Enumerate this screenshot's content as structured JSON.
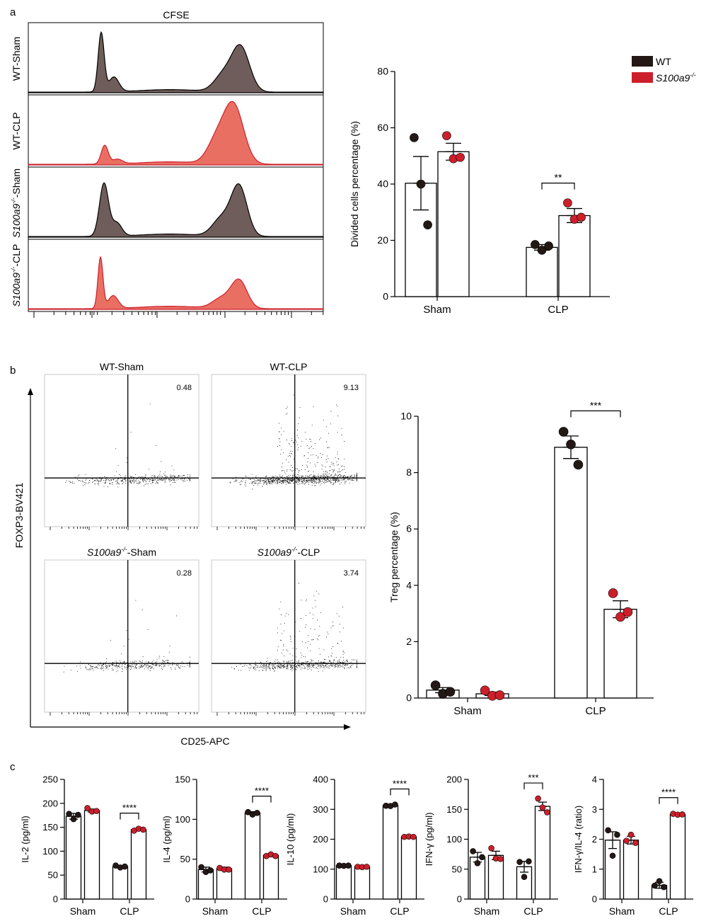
{
  "panel_labels": {
    "a": "a",
    "b": "b",
    "c": "c"
  },
  "colors": {
    "wt": "#231815",
    "ko": "#cc1f2b",
    "wt_hist": "#6e5d5a",
    "ko_hist": "#ea6f63",
    "ko_line": "#cc1f2b"
  },
  "legend": {
    "wt": "WT",
    "ko": "S100a9",
    "ko_sup": "-/-"
  },
  "panel_a": {
    "histogram_title": "CFSE",
    "rows": [
      {
        "prefix": "WT",
        "sup": "",
        "suffix": "-Sham",
        "italic_prefix": false,
        "color_key": "wt_hist"
      },
      {
        "prefix": "WT",
        "sup": "",
        "suffix": "-CLP",
        "italic_prefix": false,
        "color_key": "ko_hist"
      },
      {
        "prefix": "S100a9",
        "sup": "-/-",
        "suffix": "-Sham",
        "italic_prefix": true,
        "color_key": "wt_hist"
      },
      {
        "prefix": "S100a9",
        "sup": "-/-",
        "suffix": "-CLP",
        "italic_prefix": true,
        "color_key": "ko_hist"
      }
    ]
  },
  "panel_b": {
    "quadrants": [
      {
        "title_prefix": "WT",
        "title_sup": "",
        "title_suffix": "-Sham",
        "italic": false,
        "value": "0.48",
        "density": 0.45
      },
      {
        "title_prefix": "WT",
        "title_sup": "",
        "title_suffix": "-CLP",
        "italic": false,
        "value": "9.13",
        "density": 1.0
      },
      {
        "title_prefix": "S100a9",
        "title_sup": "-/-",
        "title_suffix": "-Sham",
        "italic": true,
        "value": "0.28",
        "density": 0.4
      },
      {
        "title_prefix": "S100a9",
        "title_sup": "-/-",
        "title_suffix": "-CLP",
        "italic": true,
        "value": "3.74",
        "density": 0.6
      }
    ],
    "y_axis_label": "FOXP3-BV421",
    "x_axis_label": "CD25-APC"
  },
  "chart_data": [
    {
      "id": "a-bar",
      "type": "bar",
      "title": "",
      "xlabel": "",
      "ylabel": "Divided cells percentage (%)",
      "categories": [
        "Sham",
        "CLP"
      ],
      "ylim": [
        0,
        80
      ],
      "yticks": [
        "0",
        "20",
        "40",
        "60",
        "80"
      ],
      "series": [
        {
          "name": "WT",
          "values": [
            40.3,
            17.5
          ],
          "sem": [
            9.5,
            1.0
          ],
          "points": [
            [
              56.5,
              40.0,
              25.5
            ],
            [
              18.5,
              16.5,
              18.0
            ]
          ]
        },
        {
          "name": "S100a9-/-",
          "values": [
            51.5,
            28.8
          ],
          "sem": [
            3.0,
            2.5
          ],
          "points": [
            [
              57.2,
              49.0,
              49.5
            ],
            [
              33.3,
              27.5,
              28.2
            ]
          ]
        }
      ],
      "significance": [
        {
          "category": "CLP",
          "label": "**"
        }
      ]
    },
    {
      "id": "b-bar",
      "type": "bar",
      "title": "",
      "xlabel": "",
      "ylabel": "Treg percentage (%)",
      "categories": [
        "Sham",
        "CLP"
      ],
      "ylim": [
        0,
        10
      ],
      "yticks": [
        "0",
        "2",
        "4",
        "6",
        "8",
        "10"
      ],
      "series": [
        {
          "name": "WT",
          "values": [
            0.28,
            8.9
          ],
          "sem": [
            0.09,
            0.4
          ],
          "points": [
            [
              0.45,
              0.15,
              0.22
            ],
            [
              9.45,
              9.0,
              8.28
            ]
          ]
        },
        {
          "name": "S100a9-/-",
          "values": [
            0.15,
            3.15
          ],
          "sem": [
            0.06,
            0.3
          ],
          "points": [
            [
              0.27,
              0.08,
              0.1
            ],
            [
              3.72,
              2.88,
              3.05
            ]
          ]
        }
      ],
      "significance": [
        {
          "category": "CLP",
          "label": "***"
        }
      ]
    },
    {
      "id": "c-il2",
      "type": "bar",
      "title": "",
      "xlabel": "",
      "ylabel": "IL-2 (pg/ml)",
      "categories": [
        "Sham",
        "CLP"
      ],
      "ylim": [
        0,
        250
      ],
      "yticks": [
        "0",
        "50",
        "100",
        "150",
        "200",
        "250"
      ],
      "series": [
        {
          "name": "WT",
          "values": [
            173,
            68
          ],
          "sem": [
            6,
            2
          ],
          "points": [
            [
              178,
              167,
              176
            ],
            [
              70,
              66,
              68
            ]
          ]
        },
        {
          "name": "S100a9-/-",
          "values": [
            185,
            145
          ],
          "sem": [
            3,
            2
          ],
          "points": [
            [
              190,
              183,
              184
            ],
            [
              143,
              147,
              145
            ]
          ]
        }
      ],
      "significance": [
        {
          "category": "CLP",
          "label": "****"
        }
      ]
    },
    {
      "id": "c-il4",
      "type": "bar",
      "title": "",
      "xlabel": "",
      "ylabel": "IL-4 (pg/ml)",
      "categories": [
        "Sham",
        "CLP"
      ],
      "ylim": [
        0,
        150
      ],
      "yticks": [
        "0",
        "50",
        "100",
        "150"
      ],
      "series": [
        {
          "name": "WT",
          "values": [
            37,
            108
          ],
          "sem": [
            3,
            1.5
          ],
          "points": [
            [
              40,
              34,
              36
            ],
            [
              109,
              106,
              108
            ]
          ]
        },
        {
          "name": "S100a9-/-",
          "values": [
            38,
            55
          ],
          "sem": [
            2,
            1.5
          ],
          "points": [
            [
              39,
              37,
              37
            ],
            [
              54,
              56,
              54
            ]
          ]
        }
      ],
      "significance": [
        {
          "category": "CLP",
          "label": "****"
        }
      ]
    },
    {
      "id": "c-il10",
      "type": "bar",
      "title": "",
      "xlabel": "",
      "ylabel": "IL-10 (pg/ml)",
      "categories": [
        "Sham",
        "CLP"
      ],
      "ylim": [
        0,
        400
      ],
      "yticks": [
        "0",
        "100",
        "200",
        "300",
        "400"
      ],
      "series": [
        {
          "name": "WT",
          "values": [
            112,
            313
          ],
          "sem": [
            1,
            3
          ],
          "points": [
            [
              112,
              111,
              112
            ],
            [
              312,
              311,
              316
            ]
          ]
        },
        {
          "name": "S100a9-/-",
          "values": [
            108,
            208
          ],
          "sem": [
            1,
            1
          ],
          "points": [
            [
              108,
              107,
              108
            ],
            [
              208,
              209,
              208
            ]
          ]
        }
      ],
      "significance": [
        {
          "category": "CLP",
          "label": "****"
        }
      ]
    },
    {
      "id": "c-ifng",
      "type": "bar",
      "title": "",
      "xlabel": "",
      "ylabel": "IFN-γ (pg/ml)",
      "categories": [
        "Sham",
        "CLP"
      ],
      "ylim": [
        0,
        200
      ],
      "yticks": [
        "0",
        "50",
        "100",
        "150",
        "200"
      ],
      "series": [
        {
          "name": "WT",
          "values": [
            70,
            54
          ],
          "sem": [
            8,
            9
          ],
          "points": [
            [
              80,
              60,
              70
            ],
            [
              62,
              37,
              63
            ]
          ]
        },
        {
          "name": "S100a9-/-",
          "values": [
            73,
            155
          ],
          "sem": [
            7,
            7
          ],
          "points": [
            [
              85,
              68,
              67
            ],
            [
              168,
              153,
              145
            ]
          ]
        }
      ],
      "significance": [
        {
          "category": "CLP",
          "label": "***"
        }
      ]
    },
    {
      "id": "c-ratio",
      "type": "bar",
      "title": "",
      "xlabel": "",
      "ylabel": "IFN-γ/IL-4 (ratio)",
      "categories": [
        "Sham",
        "CLP"
      ],
      "ylim": [
        0,
        4
      ],
      "yticks": [
        "0",
        "1",
        "2",
        "3",
        "4"
      ],
      "series": [
        {
          "name": "WT",
          "values": [
            1.97,
            0.46
          ],
          "sem": [
            0.28,
            0.1
          ],
          "points": [
            [
              2.3,
              1.45,
              2.15
            ],
            [
              0.45,
              0.6,
              0.4
            ]
          ]
        },
        {
          "name": "S100a9-/-",
          "values": [
            1.97,
            2.83
          ],
          "sem": [
            0.13,
            0.04
          ],
          "points": [
            [
              1.95,
              2.15,
              1.88
            ],
            [
              2.85,
              2.82,
              2.83
            ]
          ]
        }
      ],
      "significance": [
        {
          "category": "CLP",
          "label": "****"
        }
      ]
    }
  ]
}
